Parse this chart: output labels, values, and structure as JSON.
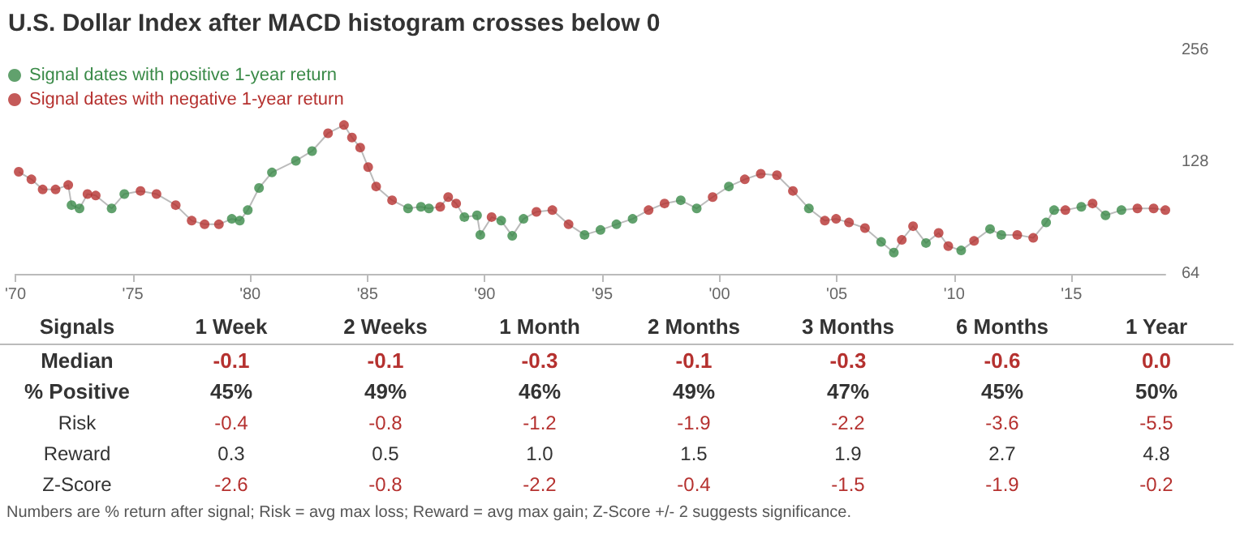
{
  "chart_data": [
    {
      "type": "line",
      "title": "U.S. Dollar Index after MACD histogram crosses below 0",
      "log": "y",
      "legend": "top left",
      "marker": "circle",
      "xlim": [
        1970,
        2019
      ],
      "xticks": [
        {
          "value": 1970,
          "label": "'70"
        },
        {
          "value": 1975,
          "label": "'75"
        },
        {
          "value": 1980,
          "label": "'80"
        },
        {
          "value": 1985,
          "label": "'85"
        },
        {
          "value": 1990,
          "label": "'90"
        },
        {
          "value": 1995,
          "label": "'95"
        },
        {
          "value": 2000,
          "label": "'00"
        },
        {
          "value": 2005,
          "label": "'05"
        },
        {
          "value": 2010,
          "label": "'10"
        },
        {
          "value": 2015,
          "label": "'15"
        }
      ],
      "ylim": [
        64,
        256
      ],
      "yticks": [
        64,
        128,
        256
      ],
      "series": [
        {
          "type": "line",
          "marker": "none",
          "color": "#bbbbbb",
          "x": [
            1970.14,
            1970.68,
            1971.16,
            1971.71,
            1972.25,
            1972.39,
            1972.73,
            1973.07,
            1973.42,
            1974.1,
            1974.64,
            1975.33,
            1976.01,
            1976.83,
            1977.51,
            1978.06,
            1978.67,
            1979.22,
            1979.56,
            1979.9,
            1980.38,
            1980.93,
            1981.95,
            1982.64,
            1983.32,
            1984.0,
            1984.34,
            1984.69,
            1985.03,
            1985.37,
            1986.05,
            1986.73,
            1987.28,
            1987.62,
            1988.1,
            1988.44,
            1988.78,
            1989.13,
            1989.67,
            1989.81,
            1990.29,
            1990.7,
            1991.17,
            1991.65,
            1992.2,
            1992.88,
            1993.57,
            1994.25,
            1994.93,
            1995.61,
            1996.3,
            1996.98,
            1997.66,
            1998.35,
            1999.03,
            1999.71,
            2000.4,
            2001.08,
            2001.76,
            2002.45,
            2003.13,
            2003.81,
            2004.49,
            2004.97,
            2005.52,
            2006.2,
            2006.89,
            2007.43,
            2007.77,
            2008.25,
            2008.8,
            2009.34,
            2009.75,
            2010.3,
            2010.85,
            2011.53,
            2012.01,
            2012.69,
            2013.37,
            2013.92,
            2014.26,
            2014.74,
            2015.42,
            2015.9,
            2016.45,
            2017.13,
            2017.81,
            2018.5,
            2019.0
          ],
          "values": [
            120.5,
            115,
            108,
            108,
            111,
            98,
            96,
            105,
            104,
            96,
            105,
            107,
            105,
            98,
            89,
            87,
            87,
            90,
            89,
            95,
            109,
            120,
            129,
            137,
            153,
            161,
            149,
            140,
            124,
            110,
            101,
            96,
            97,
            96,
            97,
            103,
            99,
            91,
            92,
            81.5,
            91,
            89,
            81,
            90,
            94,
            95,
            87,
            81.5,
            84,
            87,
            90,
            95,
            99,
            101,
            96,
            103,
            110,
            115,
            119,
            118,
            107,
            96,
            89,
            90,
            88,
            85,
            78,
            73,
            79,
            86,
            77.5,
            82.5,
            76,
            74,
            78.5,
            84.5,
            81.5,
            81.5,
            80,
            88,
            95,
            95,
            97,
            99,
            92,
            95,
            96,
            96,
            95
          ]
        },
        {
          "type": "scatter",
          "name": "Signal dates with positive 1-year return",
          "color": "#3a8a48",
          "x": [
            1972.39,
            1972.73,
            1974.1,
            1974.64,
            1979.22,
            1979.56,
            1979.9,
            1980.38,
            1980.93,
            1981.95,
            1982.64,
            1986.73,
            1987.28,
            1987.62,
            1989.13,
            1989.67,
            1989.81,
            1990.7,
            1991.17,
            1991.65,
            1994.25,
            1994.93,
            1995.61,
            1996.3,
            1998.35,
            1999.03,
            2000.4,
            2003.81,
            2006.89,
            2007.43,
            2008.8,
            2010.3,
            2011.53,
            2012.01,
            2013.92,
            2014.26,
            2015.42,
            2016.45,
            2017.13
          ],
          "values": [
            98,
            96,
            96,
            105,
            90,
            89,
            95,
            109,
            120,
            129,
            137,
            96,
            97,
            96,
            91,
            92,
            81.5,
            89,
            81,
            90,
            81.5,
            84,
            87,
            90,
            101,
            96,
            110,
            96,
            78,
            73,
            77.5,
            74,
            84.5,
            81.5,
            88,
            95,
            97,
            92,
            95
          ]
        },
        {
          "type": "scatter",
          "name": "Signal dates with negative 1-year return",
          "color": "#b5312f",
          "x": [
            1970.14,
            1970.68,
            1971.16,
            1971.71,
            1972.25,
            1973.07,
            1973.42,
            1975.33,
            1976.01,
            1976.83,
            1977.51,
            1978.06,
            1978.67,
            1983.32,
            1984.0,
            1984.34,
            1984.69,
            1985.03,
            1985.37,
            1986.05,
            1988.1,
            1988.44,
            1988.78,
            1990.29,
            1992.2,
            1992.88,
            1993.57,
            1996.98,
            1997.66,
            1999.71,
            2001.08,
            2001.76,
            2002.45,
            2003.13,
            2004.49,
            2004.97,
            2005.52,
            2006.2,
            2007.77,
            2008.25,
            2009.34,
            2009.75,
            2010.85,
            2012.69,
            2013.37,
            2014.74,
            2015.9,
            2017.81,
            2018.5,
            2019.0
          ],
          "values": [
            120.5,
            115,
            108,
            108,
            111,
            105,
            104,
            107,
            105,
            98,
            89,
            87,
            87,
            153,
            161,
            149,
            140,
            124,
            110,
            101,
            97,
            103,
            99,
            91,
            94,
            95,
            87,
            95,
            99,
            103,
            115,
            119,
            118,
            107,
            89,
            90,
            88,
            85,
            79,
            86,
            82.5,
            76,
            78.5,
            81.5,
            80,
            95,
            99,
            96,
            96,
            95
          ]
        }
      ]
    },
    {
      "type": "other",
      "ylabel": "Signals",
      "categories": [
        "1 Week",
        "2 Weeks",
        "1 Month",
        "2 Months",
        "3 Months",
        "6 Months",
        "1 Year"
      ],
      "y_categories": [
        "Median",
        "% Positive",
        "Risk",
        "Reward",
        "Z-Score"
      ],
      "cell_labels": [
        [
          "-0.1",
          "-0.1",
          "-0.3",
          "-0.1",
          "-0.3",
          "-0.6",
          "0.0"
        ],
        [
          "45%",
          "49%",
          "46%",
          "49%",
          "47%",
          "45%",
          "50%"
        ],
        [
          "-0.4",
          "-0.8",
          "-1.2",
          "-1.9",
          "-2.2",
          "-3.6",
          "-5.5"
        ],
        [
          "0.3",
          "0.5",
          "1.0",
          "1.5",
          "1.9",
          "2.7",
          "4.8"
        ],
        [
          "-2.6",
          "-0.8",
          "-2.2",
          "-0.4",
          "-1.5",
          "-1.9",
          "-0.2"
        ]
      ],
      "annotations": [
        "Numbers are % return after signal; Risk = avg max loss; Reward = avg max gain; Z-Score +/- 2 suggests significance."
      ]
    }
  ]
}
